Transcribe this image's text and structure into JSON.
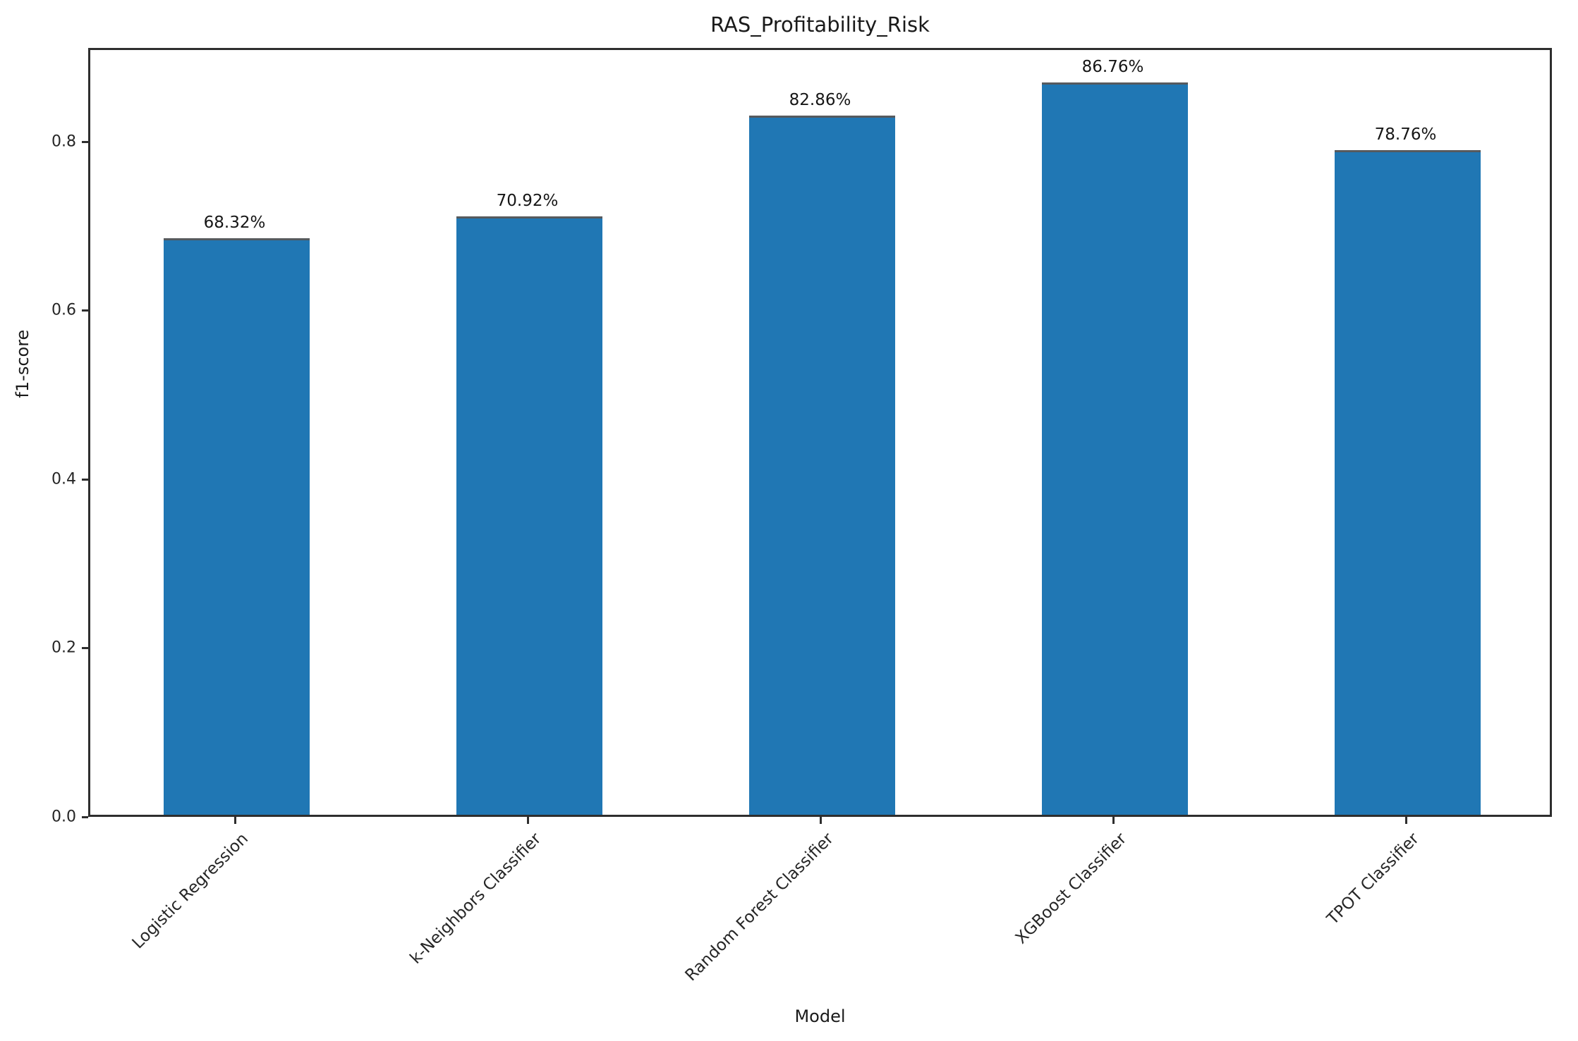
{
  "chart_data": {
    "type": "bar",
    "title": "RAS_Profitability_Risk",
    "xlabel": "Model",
    "ylabel": "f1-score",
    "categories": [
      "Logistic Regression",
      "k-Neighbors Classifier",
      "Random Forest Classifier",
      "XGBoost Classifier",
      "TPOT Classifier"
    ],
    "values": [
      0.6832,
      0.7092,
      0.8286,
      0.8676,
      0.7876
    ],
    "value_labels": [
      "68.32%",
      "70.92%",
      "82.86%",
      "86.76%",
      "78.76%"
    ],
    "yticks": [
      0.0,
      0.2,
      0.4,
      0.6,
      0.8
    ],
    "ytick_labels": [
      "0.0",
      "0.2",
      "0.4",
      "0.6",
      "0.8"
    ],
    "ylim": [
      0,
      0.911
    ],
    "bar_color": "#2077b4",
    "bar_width_fraction": 0.5,
    "xtick_rotation_deg": 45,
    "grid": false,
    "legend": null
  }
}
